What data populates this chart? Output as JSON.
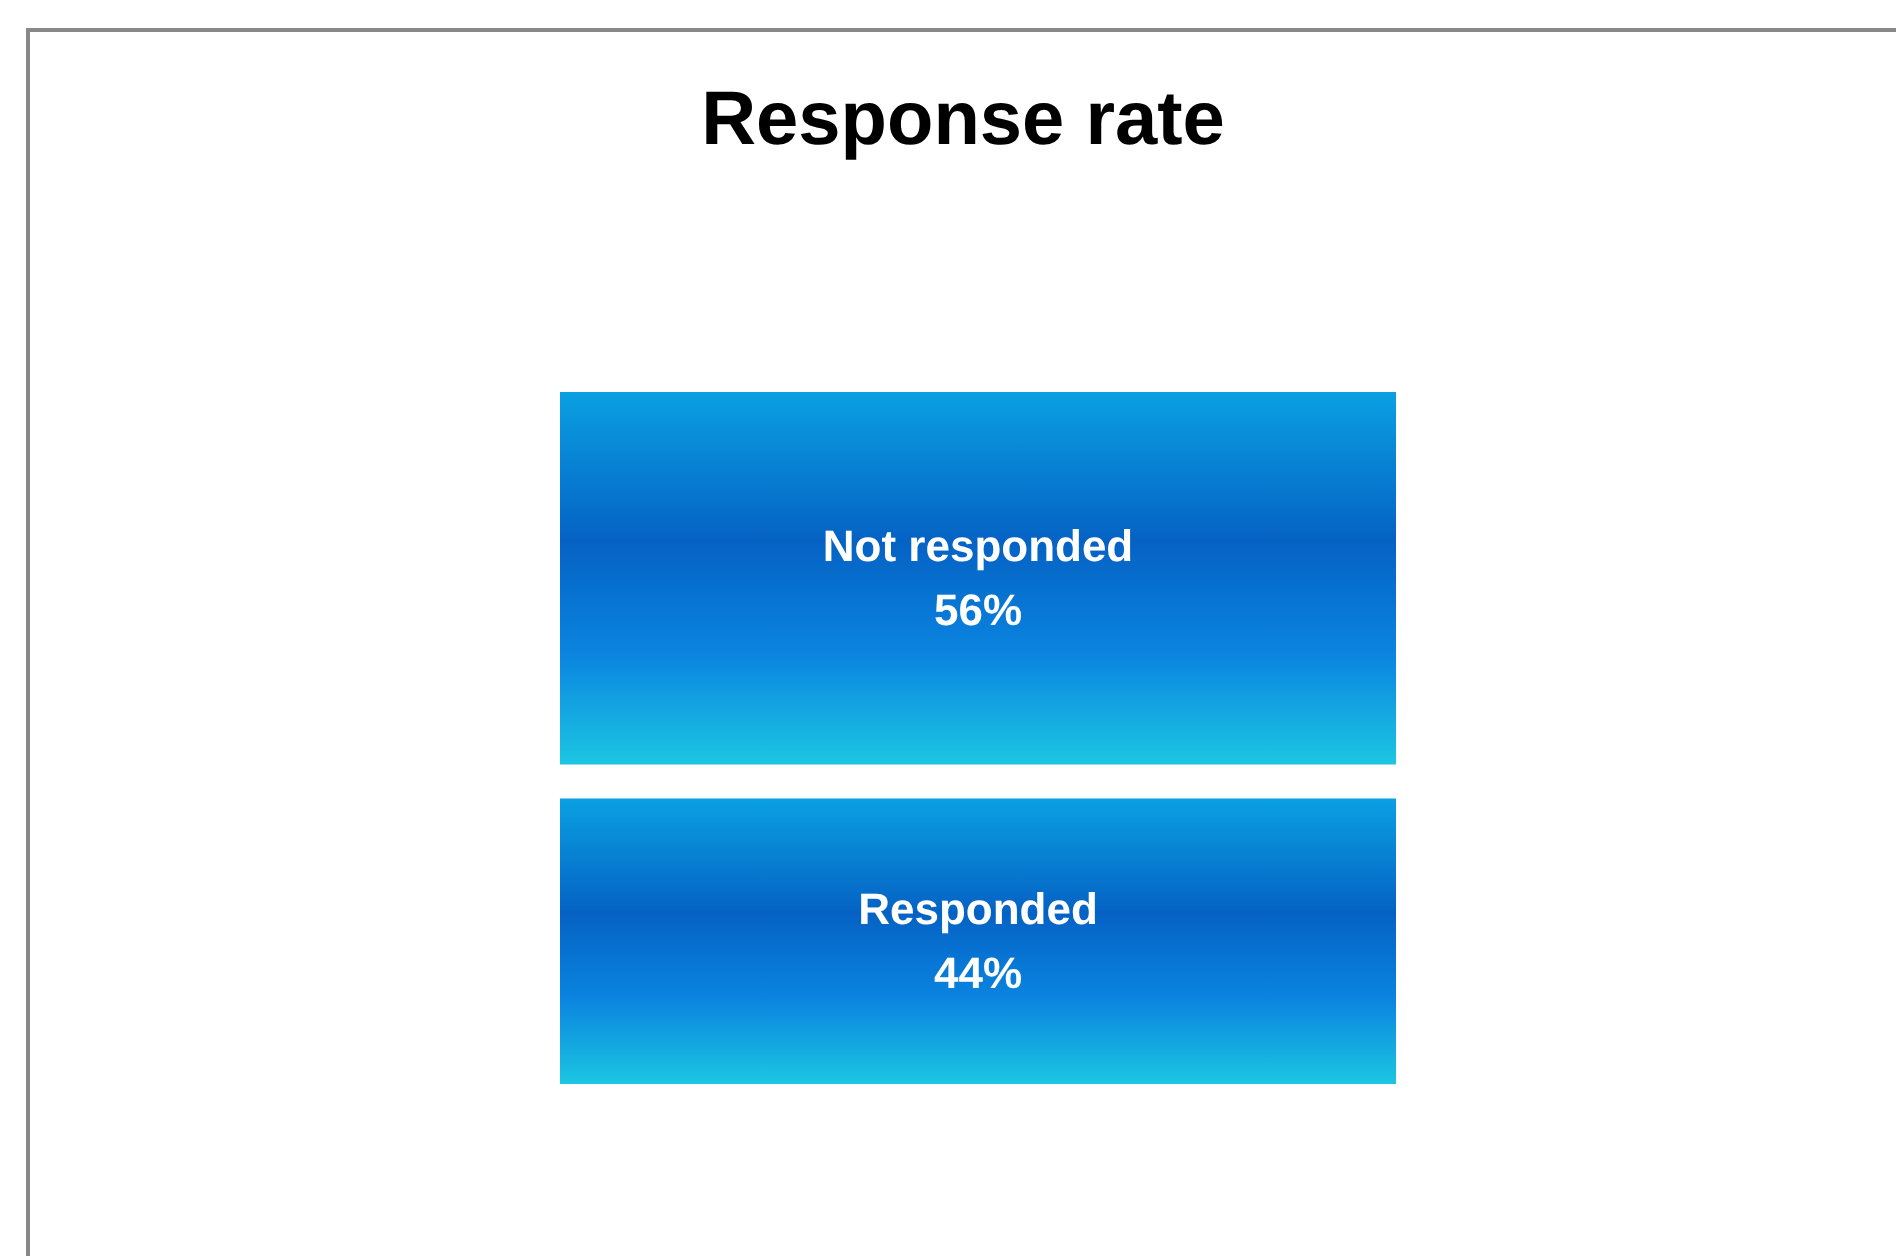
{
  "chart_data": {
    "type": "other",
    "title": "Response rate",
    "categories": [
      "Not responded",
      "Responded"
    ],
    "values": [
      56,
      44
    ],
    "value_labels": [
      "56%",
      "44%"
    ],
    "colors": [
      "#0562c4",
      "#0562c4"
    ]
  }
}
